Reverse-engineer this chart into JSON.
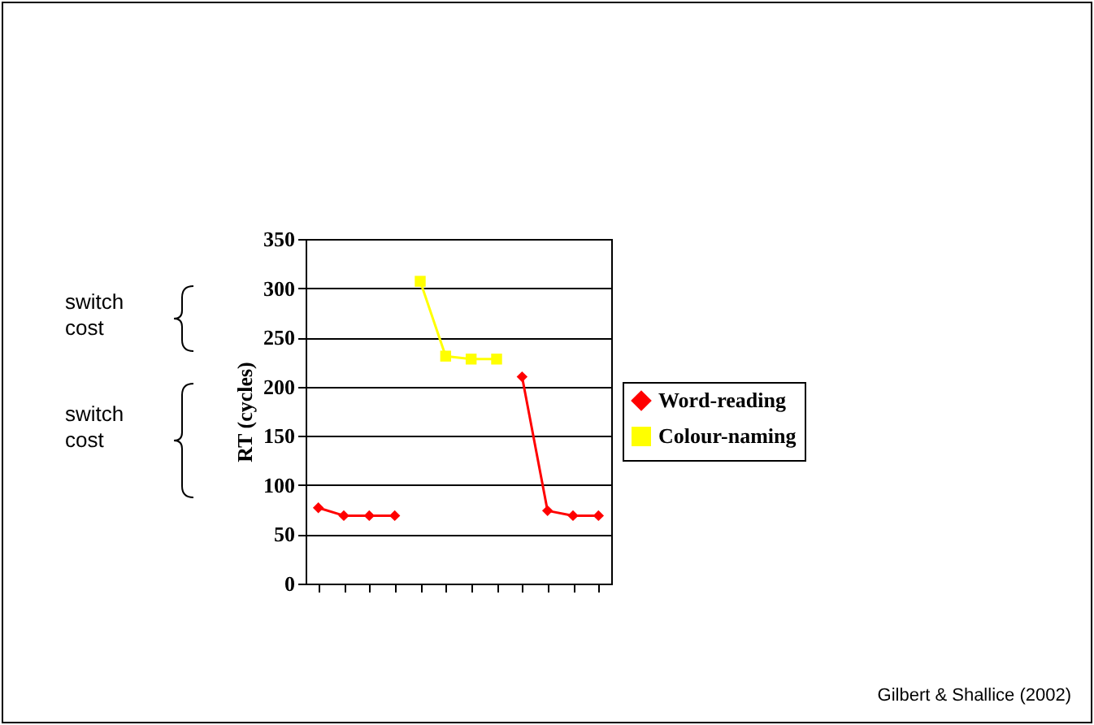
{
  "chart_data": {
    "type": "line",
    "ylabel": "RT (cycles)",
    "categories": [
      null,
      null,
      null,
      null,
      null,
      null,
      null,
      null,
      null,
      null,
      null,
      null
    ],
    "series": [
      {
        "name": "Word-reading",
        "color": "#ff0000",
        "marker": "diamond",
        "values": [
          77,
          69,
          69,
          69,
          null,
          null,
          null,
          null,
          210,
          74,
          69,
          69
        ]
      },
      {
        "name": "Colour-naming",
        "color": "#ffff00",
        "marker": "square",
        "values": [
          null,
          null,
          null,
          null,
          307,
          231,
          228,
          228,
          null,
          null,
          null,
          null
        ]
      }
    ],
    "ylim": [
      0,
      350
    ],
    "yticks": [
      0,
      50,
      100,
      150,
      200,
      250,
      300,
      350
    ],
    "grid": "y",
    "legend": "right",
    "tick_labels": "y",
    "line_style": "solid",
    "annotations": [
      "switch cost",
      "switch cost",
      "Gilbert & Shallice (2002)"
    ]
  }
}
